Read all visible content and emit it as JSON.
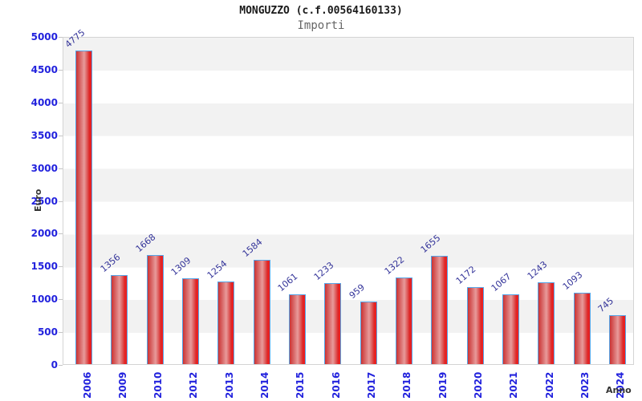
{
  "title": "MONGUZZO (c.f.00564160133)",
  "subtitle": "Importi",
  "chart_data": {
    "type": "bar",
    "title": "MONGUZZO (c.f.00564160133)",
    "subtitle": "Importi",
    "xlabel": "Anno",
    "ylabel": "Euro",
    "categories": [
      "2006",
      "2009",
      "2010",
      "2012",
      "2013",
      "2014",
      "2015",
      "2016",
      "2017",
      "2018",
      "2019",
      "2020",
      "2021",
      "2022",
      "2023",
      "2024"
    ],
    "values": [
      4775,
      1356,
      1668,
      1309,
      1254,
      1584,
      1061,
      1233,
      959,
      1322,
      1655,
      1172,
      1067,
      1243,
      1093,
      745
    ],
    "ylim": [
      0,
      5000
    ],
    "ytick_step": 500,
    "grid": "alternating-horizontal-bands",
    "legend": "none",
    "colors": {
      "bar_fill_edge": "#cc3333",
      "bar_fill_center": "#e89b9b",
      "bar_fill_right": "#f21d1d",
      "bar_border": "#55a5e8",
      "band_gray": "#f2f2f2",
      "band_white": "#ffffff",
      "plot_border": "#d4d4d4",
      "axis_tick_label": "#2222dd",
      "value_label": "#333399",
      "axis_title": "#333333",
      "title_color": "#1a1a1a",
      "subtitle_color": "#666666"
    }
  }
}
